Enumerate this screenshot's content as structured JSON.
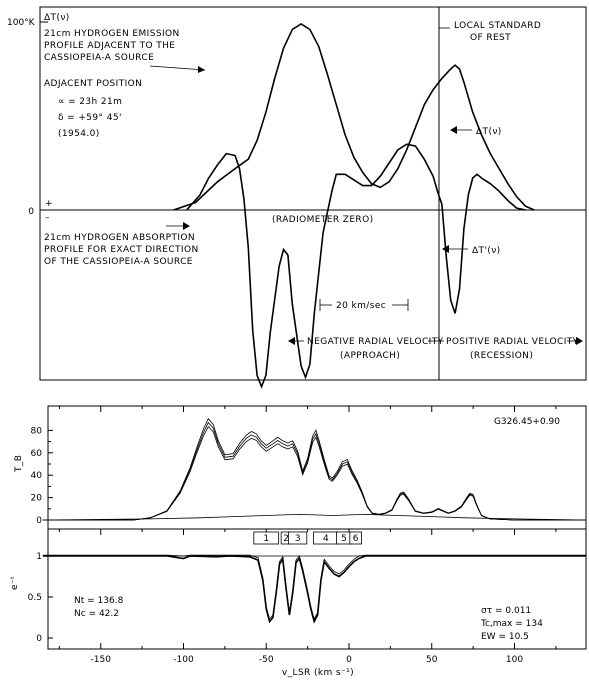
{
  "chart_data": [
    {
      "type": "line",
      "title": "",
      "ylabel": "ΔT(ν)",
      "ytick_labels": [
        "100°K",
        "0"
      ],
      "zero_signs": [
        "+",
        "–"
      ],
      "annotations": {
        "emission_label": [
          "21cm HYDROGEN EMISSION",
          "PROFILE ADJACENT TO THE",
          "CASSIOPEIA-A SOURCE"
        ],
        "position_heading": "ADJACENT POSITION",
        "ra": "∝ = 23h 21m",
        "dec": "δ = +59° 45'",
        "epoch": "(1954.0)",
        "lsr": [
          "LOCAL STANDARD",
          "OF REST"
        ],
        "delta_t_curve": "ΔT(ν)",
        "delta_t_prime_curve": "ΔT'(ν)",
        "radiometer_zero": "(RADIOMETER ZERO)",
        "absorption_label": [
          "21cm HYDROGEN ABSORPTION",
          "PROFILE FOR EXACT DIRECTION",
          "OF THE CASSIOPEIA-A SOURCE"
        ],
        "scale_bar": "20 km/sec",
        "negative_velocity": [
          "NEGATIVE RADIAL VELOCITY",
          "(APPROACH)"
        ],
        "positive_velocity": [
          "POSITIVE RADIAL VELOCITY",
          "(RECESSION)"
        ]
      },
      "series": [
        {
          "name": "emission",
          "points": [
            [
              -60,
              0
            ],
            [
              -55,
              4
            ],
            [
              -50,
              15
            ],
            [
              -46,
              22
            ],
            [
              -43,
              27
            ],
            [
              -41,
              37
            ],
            [
              -39,
              52
            ],
            [
              -37,
              70
            ],
            [
              -35,
              86
            ],
            [
              -33,
              96
            ],
            [
              -31,
              99
            ],
            [
              -29,
              96
            ],
            [
              -27,
              87
            ],
            [
              -25,
              72
            ],
            [
              -23,
              56
            ],
            [
              -21,
              40
            ],
            [
              -19,
              28
            ],
            [
              -17,
              20
            ],
            [
              -15,
              14
            ],
            [
              -13,
              12
            ],
            [
              -11,
              15
            ],
            [
              -9,
              22
            ],
            [
              -7,
              32
            ],
            [
              -5,
              44
            ],
            [
              -3,
              56
            ],
            [
              -1,
              64
            ],
            [
              1,
              70
            ],
            [
              3,
              75
            ],
            [
              4,
              77
            ],
            [
              5,
              75
            ],
            [
              6,
              68
            ],
            [
              7,
              60
            ],
            [
              8,
              52
            ],
            [
              10,
              40
            ],
            [
              12,
              30
            ],
            [
              14,
              22
            ],
            [
              16,
              14
            ],
            [
              18,
              7
            ],
            [
              20,
              2
            ],
            [
              22,
              0
            ]
          ]
        },
        {
          "name": "absorption",
          "points": [
            [
              -57,
              0
            ],
            [
              -54,
              8
            ],
            [
              -52,
              17
            ],
            [
              -50,
              24
            ],
            [
              -48,
              30
            ],
            [
              -46,
              29
            ],
            [
              -45,
              22
            ],
            [
              -44,
              6
            ],
            [
              -43,
              -20
            ],
            [
              -42,
              -64
            ],
            [
              -41,
              -88
            ],
            [
              -40,
              -94
            ],
            [
              -39,
              -88
            ],
            [
              -38,
              -65
            ],
            [
              -36,
              -30
            ],
            [
              -35,
              -21
            ],
            [
              -34,
              -24
            ],
            [
              -33,
              -50
            ],
            [
              -31,
              -83
            ],
            [
              -30,
              -89
            ],
            [
              -29,
              -82
            ],
            [
              -28,
              -55
            ],
            [
              -26,
              -12
            ],
            [
              -24,
              10
            ],
            [
              -23,
              19
            ],
            [
              -21,
              19
            ],
            [
              -19,
              16
            ],
            [
              -17,
              13
            ],
            [
              -15,
              13
            ],
            [
              -13,
              18
            ],
            [
              -11,
              25
            ],
            [
              -9,
              32
            ],
            [
              -7,
              35
            ],
            [
              -5,
              34
            ],
            [
              -3,
              27
            ],
            [
              -1,
              18
            ],
            [
              0,
              10
            ],
            [
              1,
              3
            ],
            [
              2,
              -25
            ],
            [
              3,
              -48
            ],
            [
              4,
              -55
            ],
            [
              5,
              -42
            ],
            [
              6,
              -10
            ],
            [
              7,
              8
            ],
            [
              8,
              17
            ],
            [
              9,
              19
            ],
            [
              10,
              17
            ],
            [
              12,
              14
            ],
            [
              14,
              10
            ],
            [
              16,
              5
            ],
            [
              18,
              1
            ],
            [
              20,
              0
            ]
          ]
        }
      ]
    },
    {
      "type": "line",
      "title": "",
      "source": "G326.45+0.90",
      "ylabel": "T_B",
      "xlabel": "v_LSR (km s⁻¹)",
      "yticks": [
        0,
        20,
        40,
        60,
        80
      ],
      "xticks": [
        -150,
        -100,
        -50,
        0,
        50,
        100
      ],
      "ylim": [
        -2,
        95
      ],
      "xlim": [
        -185,
        143
      ],
      "series": [
        {
          "name": "T_B",
          "points": [
            [
              -185,
              0
            ],
            [
              -130,
              0
            ],
            [
              -120,
              2
            ],
            [
              -110,
              8
            ],
            [
              -102,
              25
            ],
            [
              -96,
              45
            ],
            [
              -92,
              62
            ],
            [
              -88,
              78
            ],
            [
              -85,
              87
            ],
            [
              -82,
              82
            ],
            [
              -79,
              68
            ],
            [
              -75,
              56
            ],
            [
              -70,
              57
            ],
            [
              -66,
              66
            ],
            [
              -62,
              73
            ],
            [
              -59,
              76
            ],
            [
              -56,
              74
            ],
            [
              -53,
              68
            ],
            [
              -50,
              64
            ],
            [
              -46,
              68
            ],
            [
              -43,
              71
            ],
            [
              -40,
              68
            ],
            [
              -37,
              66
            ],
            [
              -34,
              68
            ],
            [
              -31,
              59
            ],
            [
              -28,
              42
            ],
            [
              -25,
              53
            ],
            [
              -22,
              72
            ],
            [
              -20,
              77
            ],
            [
              -18,
              68
            ],
            [
              -15,
              52
            ],
            [
              -12,
              38
            ],
            [
              -10,
              36
            ],
            [
              -7,
              42
            ],
            [
              -4,
              50
            ],
            [
              -1,
              52
            ],
            [
              2,
              42
            ],
            [
              5,
              34
            ],
            [
              8,
              24
            ],
            [
              11,
              12
            ],
            [
              14,
              6
            ],
            [
              18,
              5
            ],
            [
              22,
              6
            ],
            [
              26,
              9
            ],
            [
              29,
              18
            ],
            [
              31,
              23
            ],
            [
              33,
              24
            ],
            [
              36,
              18
            ],
            [
              40,
              8
            ],
            [
              45,
              6
            ],
            [
              50,
              7
            ],
            [
              54,
              10
            ],
            [
              57,
              8
            ],
            [
              60,
              6
            ],
            [
              64,
              8
            ],
            [
              68,
              12
            ],
            [
              71,
              19
            ],
            [
              73,
              23
            ],
            [
              75,
              22
            ],
            [
              77,
              14
            ],
            [
              80,
              4
            ],
            [
              85,
              1
            ],
            [
              100,
              0
            ],
            [
              143,
              0
            ]
          ]
        },
        {
          "name": "baseline",
          "points": [
            [
              -185,
              0
            ],
            [
              -120,
              1
            ],
            [
              -90,
              2
            ],
            [
              -70,
              3
            ],
            [
              -50,
              4
            ],
            [
              -30,
              5
            ],
            [
              -10,
              4
            ],
            [
              10,
              5
            ],
            [
              30,
              4
            ],
            [
              50,
              3
            ],
            [
              70,
              2
            ],
            [
              100,
              1
            ],
            [
              143,
              0
            ]
          ]
        }
      ]
    },
    {
      "type": "line",
      "title": "",
      "ylabel": "e⁻ᵗ",
      "yticks": [
        0,
        0.5,
        1
      ],
      "ytick_labels": [
        "0",
        "0.5",
        "1"
      ],
      "ylim": [
        -0.12,
        1.2
      ],
      "xlim": [
        -185,
        143
      ],
      "components": [
        "1",
        "2",
        "3",
        "4",
        "5",
        "6"
      ],
      "stats_left": [
        "Nt = 136.8",
        "Nc =  42.2"
      ],
      "stats_right": [
        "στ = 0.011",
        "Tc,max =  134",
        "EW =  10.5"
      ],
      "series": [
        {
          "name": "e^-tau",
          "points": [
            [
              -185,
              1.0
            ],
            [
              -110,
              1.0
            ],
            [
              -100,
              0.97
            ],
            [
              -96,
              1.0
            ],
            [
              -80,
              0.99
            ],
            [
              -72,
              1.0
            ],
            [
              -60,
              0.99
            ],
            [
              -55,
              0.95
            ],
            [
              -52,
              0.7
            ],
            [
              -50,
              0.35
            ],
            [
              -48,
              0.2
            ],
            [
              -46,
              0.25
            ],
            [
              -44,
              0.55
            ],
            [
              -42,
              0.9
            ],
            [
              -40,
              0.96
            ],
            [
              -38,
              0.6
            ],
            [
              -36,
              0.28
            ],
            [
              -34,
              0.55
            ],
            [
              -32,
              0.92
            ],
            [
              -30,
              0.97
            ],
            [
              -28,
              0.82
            ],
            [
              -25,
              0.55
            ],
            [
              -23,
              0.35
            ],
            [
              -21,
              0.2
            ],
            [
              -19,
              0.28
            ],
            [
              -17,
              0.7
            ],
            [
              -15,
              0.93
            ],
            [
              -12,
              0.85
            ],
            [
              -9,
              0.78
            ],
            [
              -6,
              0.75
            ],
            [
              -3,
              0.8
            ],
            [
              0,
              0.87
            ],
            [
              3,
              0.93
            ],
            [
              6,
              0.97
            ],
            [
              10,
              1.0
            ],
            [
              143,
              1.0
            ]
          ]
        }
      ]
    }
  ]
}
